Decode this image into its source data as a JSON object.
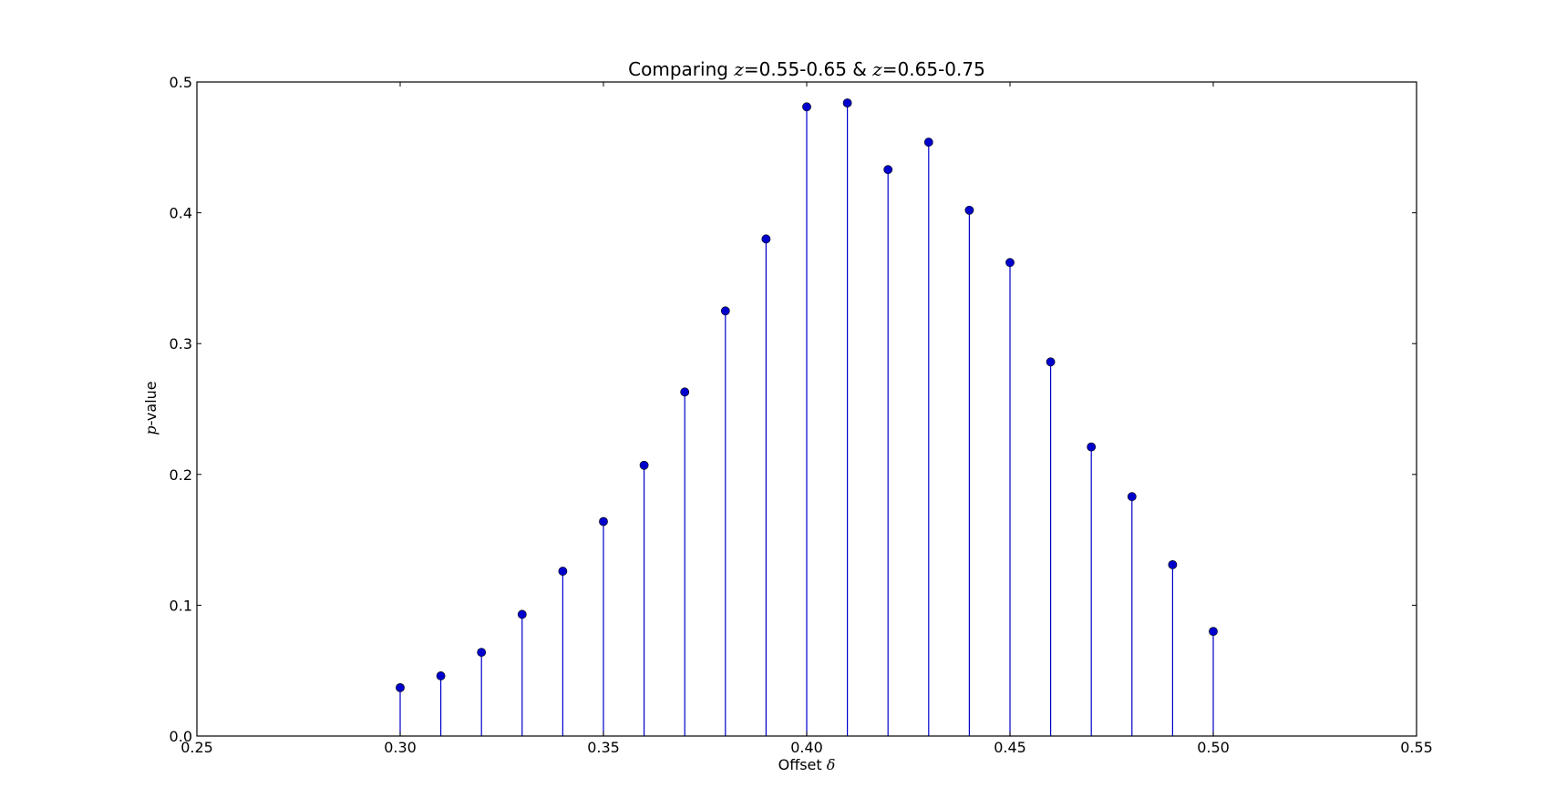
{
  "chart_data": {
    "type": "stem",
    "title_parts": {
      "prefix": "Comparing ",
      "var1": "z",
      "range1": "=0.55-0.65 & ",
      "var2": "z",
      "range2": "=0.65-0.75"
    },
    "xlabel_parts": {
      "text": "Offset ",
      "symbol": "δ"
    },
    "ylabel_parts": {
      "symbol": "p",
      "text": "-value"
    },
    "xlim": [
      0.25,
      0.55
    ],
    "ylim": [
      0.0,
      0.5
    ],
    "xticks": [
      0.25,
      0.3,
      0.35,
      0.4,
      0.45,
      0.5,
      0.55
    ],
    "xtick_labels": [
      "0.25",
      "0.30",
      "0.35",
      "0.40",
      "0.45",
      "0.50",
      "0.55"
    ],
    "yticks": [
      0.0,
      0.1,
      0.2,
      0.3,
      0.4,
      0.5
    ],
    "ytick_labels": [
      "0.0",
      "0.1",
      "0.2",
      "0.3",
      "0.4",
      "0.5"
    ],
    "grid": false,
    "series": [
      {
        "color": "#0000cc",
        "baseline_color": "#cc0000",
        "x": [
          0.3,
          0.31,
          0.32,
          0.33,
          0.34,
          0.35,
          0.36,
          0.37,
          0.38,
          0.39,
          0.4,
          0.41,
          0.42,
          0.43,
          0.44,
          0.45,
          0.46,
          0.47,
          0.48,
          0.49,
          0.5
        ],
        "y": [
          0.037,
          0.046,
          0.064,
          0.093,
          0.126,
          0.164,
          0.207,
          0.263,
          0.325,
          0.38,
          0.481,
          0.484,
          0.433,
          0.454,
          0.402,
          0.362,
          0.286,
          0.221,
          0.183,
          0.131,
          0.08
        ]
      }
    ]
  }
}
